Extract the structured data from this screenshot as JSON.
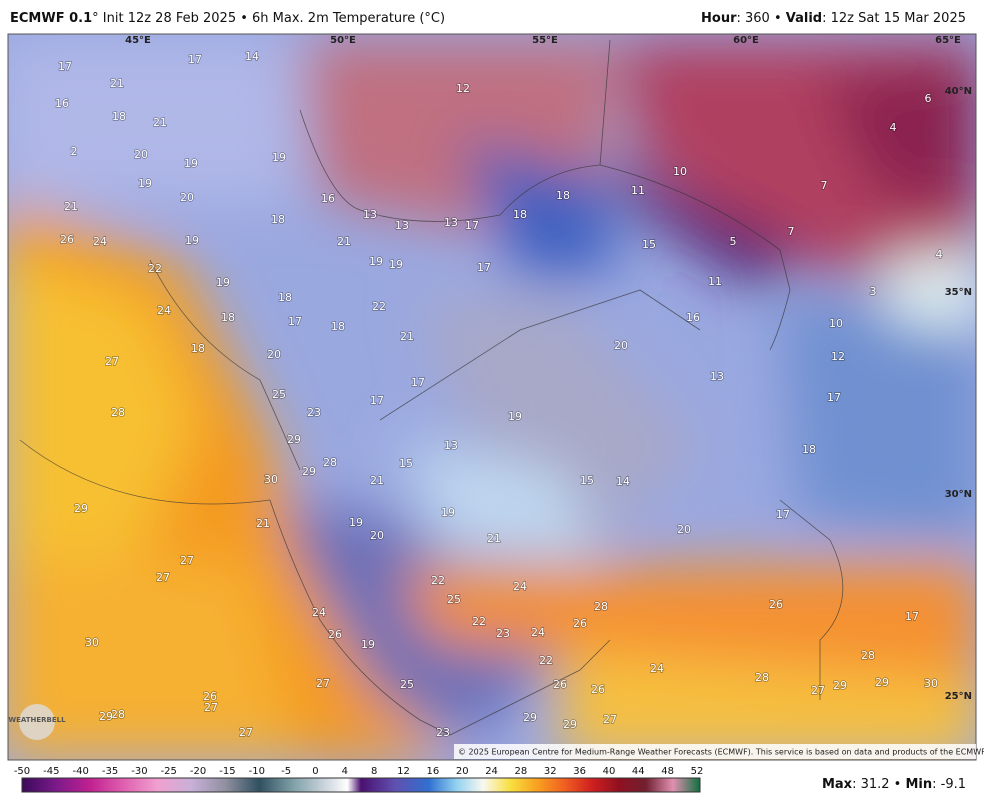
{
  "header": {
    "model": "ECMWF 0.1",
    "init": "° Init 12z 28 Feb 2025 • 6h Max. 2m Temperature (°C)",
    "hour_label": "Hour",
    "hour": ": 360 • ",
    "valid_label": "Valid",
    "valid": ": 12z Sat 15 Mar 2025"
  },
  "longitudes": [
    "45°E",
    "50°E",
    "55°E",
    "60°E",
    "65°E"
  ],
  "latitudes": [
    "40°N",
    "35°N",
    "30°N",
    "25°N"
  ],
  "labels": [
    17,
    17,
    14,
    21,
    12,
    6,
    4,
    16,
    18,
    21,
    2,
    20,
    19,
    19,
    19,
    20,
    10,
    11,
    7,
    21,
    16,
    18,
    18,
    13,
    13,
    13,
    17,
    18,
    26,
    24,
    19,
    21,
    15,
    5,
    7,
    4,
    22,
    19,
    19,
    17,
    11,
    19,
    3,
    18,
    24,
    22,
    18,
    17,
    18,
    16,
    10,
    21,
    18,
    20,
    20,
    12,
    27,
    13,
    17,
    25,
    17,
    17,
    23,
    28,
    19,
    29,
    13,
    18,
    15,
    28,
    29,
    30,
    21,
    15,
    14,
    29,
    19,
    19,
    17,
    21,
    20,
    20,
    21,
    27,
    27,
    22,
    24,
    25,
    26,
    24,
    22,
    23,
    24,
    28,
    26,
    17,
    26,
    19,
    30,
    22,
    28,
    24,
    27,
    25,
    26,
    26,
    28,
    27,
    29,
    29,
    30,
    26,
    27,
    28,
    29,
    29,
    29,
    27,
    27,
    23
  ],
  "copyright": "© 2025 European Centre for Medium-Range Weather Forecasts (ECMWF). This service is based on data and products of the ECMWF.",
  "logo": "WEATHERBELL",
  "colorbar": {
    "ticks": [
      -50,
      -45,
      -40,
      -35,
      -30,
      -25,
      -20,
      -15,
      -10,
      -5,
      0,
      4,
      8,
      12,
      16,
      20,
      24,
      28,
      32,
      36,
      40,
      44,
      48,
      52
    ]
  },
  "stats": {
    "max_label": "Max",
    "max": ": 31.2 • ",
    "min_label": "Min",
    "min": ": -9.1"
  }
}
